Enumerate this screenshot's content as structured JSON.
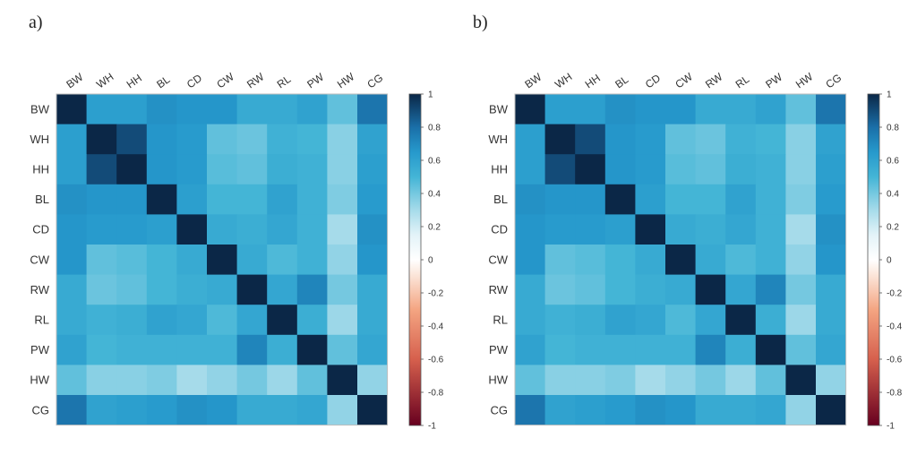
{
  "panels": {
    "a_label": "a)",
    "b_label": "b)"
  },
  "colormap": {
    "stops": [
      {
        "v": -1.0,
        "color": "#67001f"
      },
      {
        "v": -0.6,
        "color": "#d6604d"
      },
      {
        "v": -0.3,
        "color": "#f4a582"
      },
      {
        "v": -0.1,
        "color": "#fbe3d6"
      },
      {
        "v": 0.0,
        "color": "#ffffff"
      },
      {
        "v": 0.15,
        "color": "#e3f3f8"
      },
      {
        "v": 0.3,
        "color": "#a6dbea"
      },
      {
        "v": 0.5,
        "color": "#44b5d6"
      },
      {
        "v": 0.65,
        "color": "#2699cc"
      },
      {
        "v": 0.8,
        "color": "#1a6fa8"
      },
      {
        "v": 1.0,
        "color": "#0b2747"
      }
    ]
  },
  "chart_data": [
    {
      "type": "heatmap",
      "title": "",
      "labels": [
        "BW",
        "WH",
        "HH",
        "BL",
        "CD",
        "CW",
        "RW",
        "RL",
        "PW",
        "HW",
        "CG"
      ],
      "colorbar_ticks": [
        "1",
        "0.8",
        "0.6",
        "0.4",
        "0.2",
        "0",
        "-0.2",
        "-0.4",
        "-0.6",
        "-0.8",
        "-1"
      ],
      "colorbar_range": [
        -1,
        1
      ],
      "matrix": [
        [
          1.0,
          0.62,
          0.62,
          0.68,
          0.66,
          0.66,
          0.56,
          0.56,
          0.6,
          0.44,
          0.78
        ],
        [
          0.62,
          1.0,
          0.9,
          0.66,
          0.64,
          0.44,
          0.42,
          0.52,
          0.5,
          0.36,
          0.6
        ],
        [
          0.62,
          0.9,
          1.0,
          0.66,
          0.64,
          0.46,
          0.44,
          0.54,
          0.52,
          0.36,
          0.62
        ],
        [
          0.68,
          0.66,
          0.66,
          1.0,
          0.62,
          0.5,
          0.5,
          0.6,
          0.52,
          0.38,
          0.64
        ],
        [
          0.66,
          0.64,
          0.64,
          0.62,
          1.0,
          0.56,
          0.54,
          0.58,
          0.52,
          0.3,
          0.68
        ],
        [
          0.66,
          0.44,
          0.46,
          0.5,
          0.56,
          1.0,
          0.56,
          0.48,
          0.52,
          0.34,
          0.66
        ],
        [
          0.56,
          0.42,
          0.44,
          0.5,
          0.54,
          0.56,
          1.0,
          0.58,
          0.72,
          0.4,
          0.56
        ],
        [
          0.56,
          0.52,
          0.54,
          0.6,
          0.58,
          0.48,
          0.58,
          1.0,
          0.54,
          0.32,
          0.56
        ],
        [
          0.6,
          0.5,
          0.52,
          0.52,
          0.52,
          0.52,
          0.72,
          0.54,
          1.0,
          0.44,
          0.58
        ],
        [
          0.44,
          0.36,
          0.36,
          0.38,
          0.3,
          0.34,
          0.4,
          0.32,
          0.44,
          1.0,
          0.34
        ],
        [
          0.78,
          0.6,
          0.62,
          0.64,
          0.68,
          0.66,
          0.56,
          0.56,
          0.58,
          0.34,
          1.0
        ]
      ]
    },
    {
      "type": "heatmap",
      "title": "",
      "labels": [
        "BW",
        "WH",
        "HH",
        "BL",
        "CD",
        "CW",
        "RW",
        "RL",
        "PW",
        "HW",
        "CG"
      ],
      "colorbar_ticks": [
        "1",
        "0.8",
        "0.6",
        "0.4",
        "0.2",
        "0",
        "-0.2",
        "-0.4",
        "-0.6",
        "-0.8",
        "-1"
      ],
      "colorbar_range": [
        -1,
        1
      ],
      "matrix": [
        [
          1.0,
          0.62,
          0.62,
          0.68,
          0.66,
          0.66,
          0.56,
          0.56,
          0.6,
          0.44,
          0.78
        ],
        [
          0.62,
          1.0,
          0.9,
          0.66,
          0.64,
          0.44,
          0.42,
          0.52,
          0.5,
          0.36,
          0.6
        ],
        [
          0.62,
          0.9,
          1.0,
          0.66,
          0.64,
          0.46,
          0.44,
          0.54,
          0.52,
          0.36,
          0.62
        ],
        [
          0.68,
          0.66,
          0.66,
          1.0,
          0.62,
          0.5,
          0.5,
          0.6,
          0.52,
          0.38,
          0.64
        ],
        [
          0.66,
          0.64,
          0.64,
          0.62,
          1.0,
          0.56,
          0.54,
          0.58,
          0.52,
          0.3,
          0.68
        ],
        [
          0.66,
          0.44,
          0.46,
          0.5,
          0.56,
          1.0,
          0.56,
          0.48,
          0.52,
          0.34,
          0.66
        ],
        [
          0.56,
          0.42,
          0.44,
          0.5,
          0.54,
          0.56,
          1.0,
          0.58,
          0.72,
          0.4,
          0.56
        ],
        [
          0.56,
          0.52,
          0.54,
          0.6,
          0.58,
          0.48,
          0.58,
          1.0,
          0.54,
          0.32,
          0.56
        ],
        [
          0.6,
          0.5,
          0.52,
          0.52,
          0.52,
          0.52,
          0.72,
          0.54,
          1.0,
          0.44,
          0.58
        ],
        [
          0.44,
          0.36,
          0.36,
          0.38,
          0.3,
          0.34,
          0.4,
          0.32,
          0.44,
          1.0,
          0.34
        ],
        [
          0.78,
          0.6,
          0.62,
          0.64,
          0.68,
          0.66,
          0.56,
          0.56,
          0.58,
          0.34,
          1.0
        ]
      ]
    }
  ]
}
